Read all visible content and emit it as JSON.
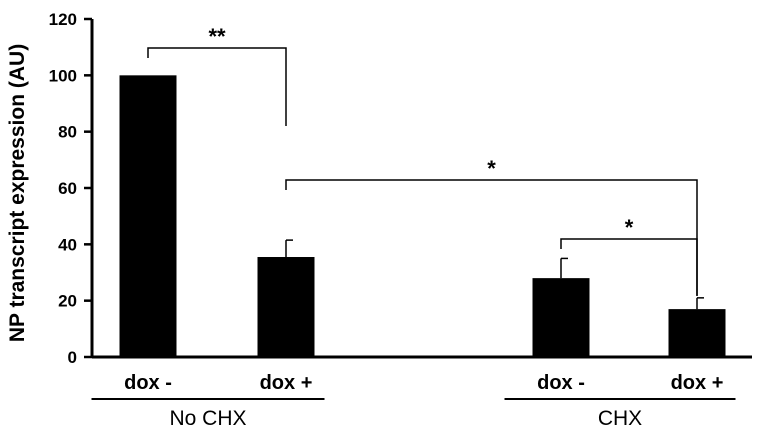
{
  "chart_data": {
    "type": "bar",
    "ylabel": "NP transcript expression (AU)",
    "ylim": [
      0,
      120
    ],
    "yticks": [
      0,
      20,
      40,
      60,
      80,
      100,
      120
    ],
    "grid": false,
    "categories": [
      "dox -",
      "dox +",
      "dox -",
      "dox +"
    ],
    "groups": [
      {
        "label": "No CHX",
        "categories": [
          0,
          1
        ]
      },
      {
        "label": "CHX",
        "categories": [
          2,
          3
        ]
      }
    ],
    "values": [
      100,
      35.5,
      28,
      17
    ],
    "errors": [
      0,
      6,
      7,
      4
    ],
    "colors": {
      "bar": "#000000"
    },
    "significance": [
      {
        "from": 0,
        "to": 1,
        "label": "**"
      },
      {
        "from": 1,
        "to": 3,
        "label": "*"
      },
      {
        "from": 2,
        "to": 3,
        "label": "*"
      }
    ]
  }
}
